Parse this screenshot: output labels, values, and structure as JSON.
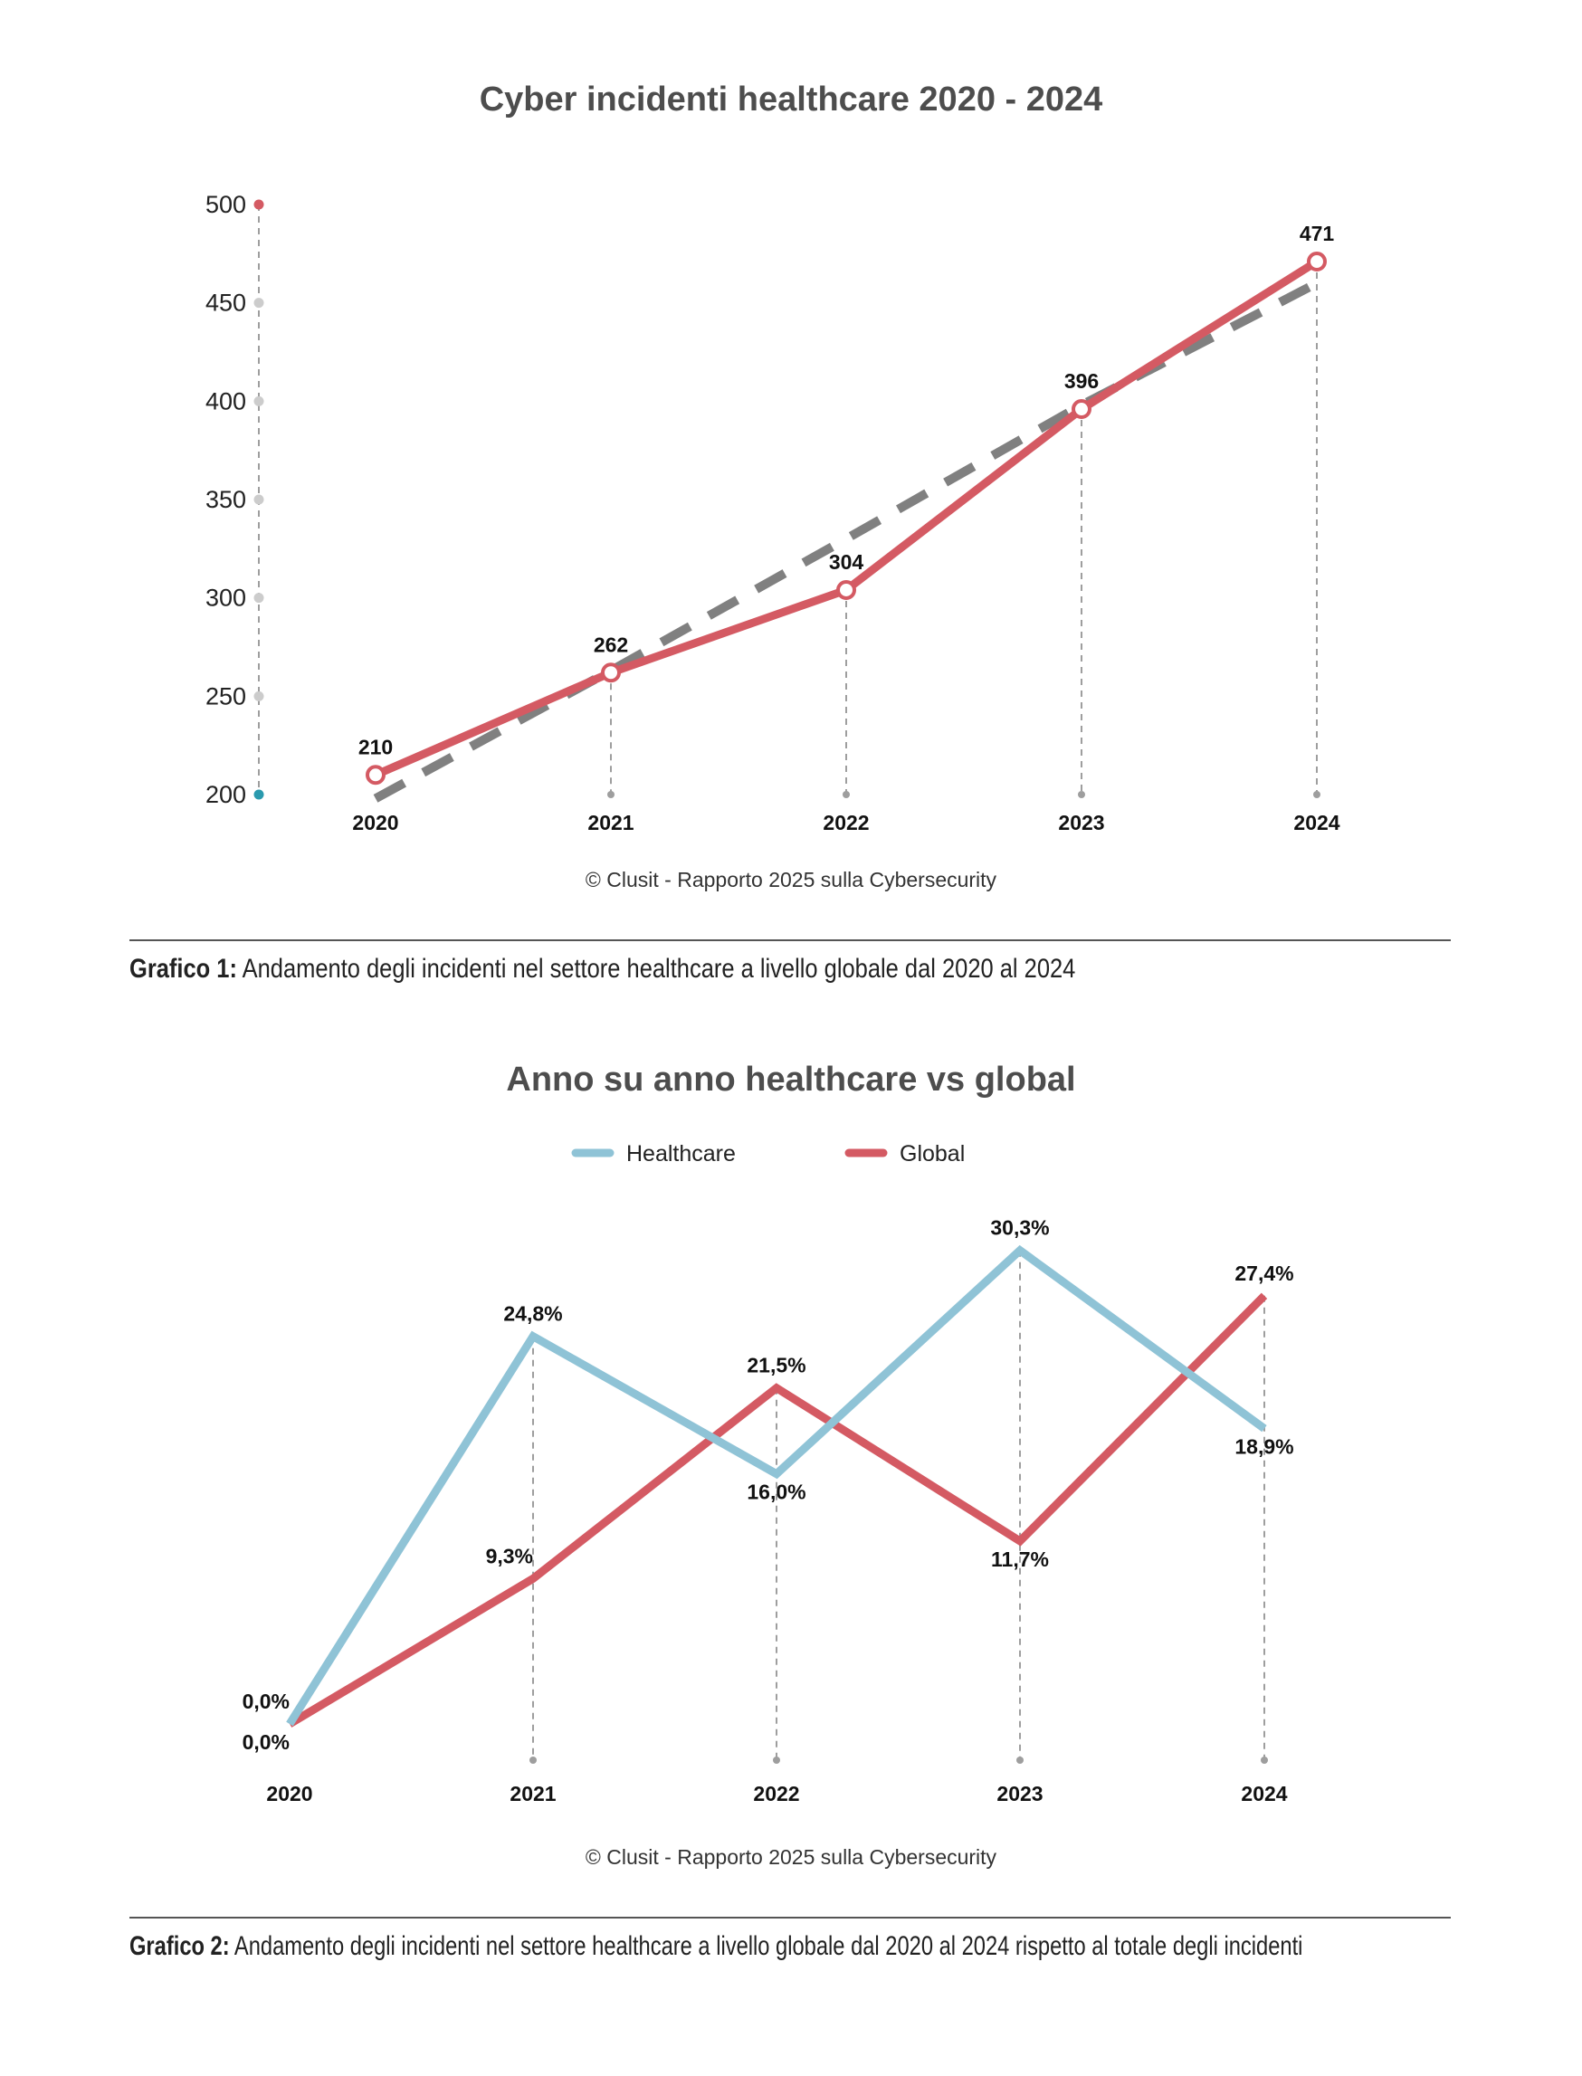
{
  "chart_data": [
    {
      "type": "line",
      "title": "Cyber incidenti healthcare 2020 - 2024",
      "categories": [
        "2020",
        "2021",
        "2022",
        "2023",
        "2024"
      ],
      "series": [
        {
          "values": [
            210,
            262,
            304,
            396,
            471
          ],
          "color": "#d45a63",
          "style": "solid"
        },
        {
          "values": [
            198,
            263,
            330,
            398,
            460
          ],
          "color": "#808080",
          "style": "dashed"
        }
      ],
      "data_labels": [
        "210",
        "262",
        "304",
        "396",
        "471"
      ],
      "ylim": [
        200,
        500
      ],
      "yticks": [
        "200",
        "250",
        "300",
        "350",
        "400",
        "450",
        "500"
      ],
      "xlabel": "",
      "ylabel": "",
      "grid": false,
      "credit": "© Clusit - Rapporto 2025 sulla Cybersecurity"
    },
    {
      "type": "line",
      "title": "Anno su anno healthcare vs global",
      "categories": [
        "2020",
        "2021",
        "2022",
        "2023",
        "2024"
      ],
      "series": [
        {
          "name": "Healthcare",
          "values": [
            0.0,
            24.8,
            16.0,
            30.3,
            18.9
          ],
          "labels": [
            "0,0%",
            "24,8%",
            "16,0%",
            "30,3%",
            "18,9%"
          ],
          "color": "#8fc3d6"
        },
        {
          "name": "Global",
          "values": [
            0.0,
            9.3,
            21.5,
            11.7,
            27.4
          ],
          "labels": [
            "0,0%",
            "9,3%",
            "21,5%",
            "11,7%",
            "27,4%"
          ],
          "color": "#d45a63"
        }
      ],
      "legend": "top-center",
      "xlabel": "",
      "ylabel": "",
      "grid": false,
      "credit": "© Clusit - Rapporto 2025 sulla Cybersecurity"
    }
  ],
  "captions": [
    {
      "label": "Grafico 1:",
      "text": " Andamento degli incidenti nel settore healthcare a livello globale dal 2020 al 2024"
    },
    {
      "label": "Grafico 2:",
      "text": " Andamento degli incidenti nel settore healthcare a livello globale dal 2020 al 2024 rispetto al totale degli incidenti"
    }
  ]
}
